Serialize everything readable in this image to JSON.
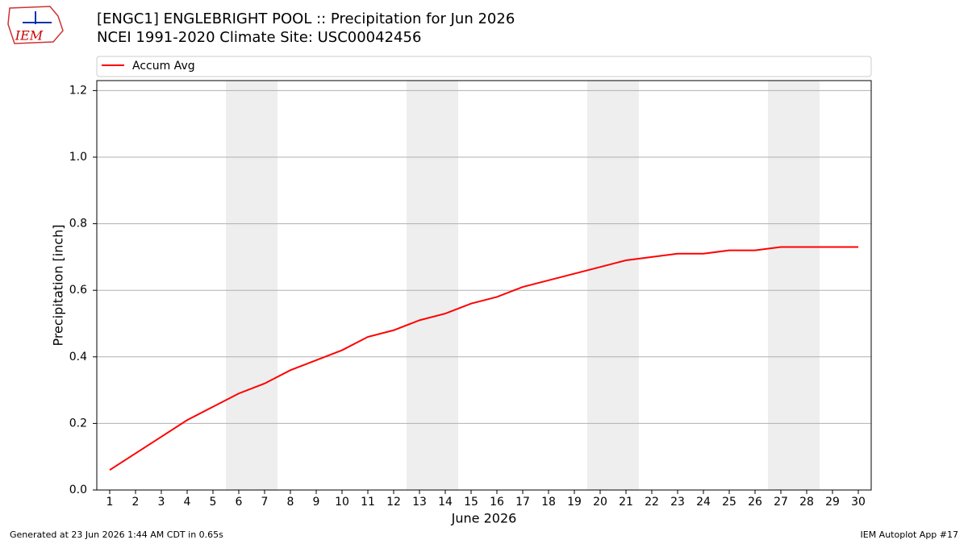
{
  "chart_data": {
    "type": "line",
    "title": "[ENGC1] ENGLEBRIGHT POOL :: Precipitation for Jun 2026",
    "subtitle": "NCEI 1991-2020 Climate Site: USC00042456",
    "logo_text": "IEM",
    "x_label": "June 2026",
    "y_label": "Precipitation [inch]",
    "x": [
      1,
      2,
      3,
      4,
      5,
      6,
      7,
      8,
      9,
      10,
      11,
      12,
      13,
      14,
      15,
      16,
      17,
      18,
      19,
      20,
      21,
      22,
      23,
      24,
      25,
      26,
      27,
      28,
      29,
      30
    ],
    "series": [
      {
        "name": "Accum Avg",
        "color": "#ff0000",
        "values": [
          0.06,
          0.11,
          0.16,
          0.21,
          0.25,
          0.29,
          0.32,
          0.36,
          0.39,
          0.42,
          0.46,
          0.48,
          0.51,
          0.53,
          0.56,
          0.58,
          0.61,
          0.63,
          0.65,
          0.67,
          0.69,
          0.7,
          0.71,
          0.71,
          0.72,
          0.72,
          0.73,
          0.73,
          0.73,
          0.73
        ]
      }
    ],
    "shaded_spans": [
      [
        5.5,
        7.5
      ],
      [
        12.5,
        14.5
      ],
      [
        19.5,
        21.5
      ],
      [
        26.5,
        28.5
      ]
    ],
    "shade_color": "#eeeeee",
    "xlim": [
      0.5,
      30.5
    ],
    "ylim": [
      0,
      1.23
    ],
    "xticks": [
      1,
      2,
      3,
      4,
      5,
      6,
      7,
      8,
      9,
      10,
      11,
      12,
      13,
      14,
      15,
      16,
      17,
      18,
      19,
      20,
      21,
      22,
      23,
      24,
      25,
      26,
      27,
      28,
      29,
      30
    ],
    "yticks": [
      {
        "value": 0,
        "label": "0.0"
      },
      0.2,
      0.4,
      0.6,
      0.8,
      {
        "value": 1,
        "label": "1.0"
      },
      1.2
    ],
    "grid": true,
    "legend": "top",
    "footer_left": "Generated at 23 Jun 2026 1:44 AM CDT in 0.65s",
    "footer_right": "IEM Autoplot App #17"
  }
}
